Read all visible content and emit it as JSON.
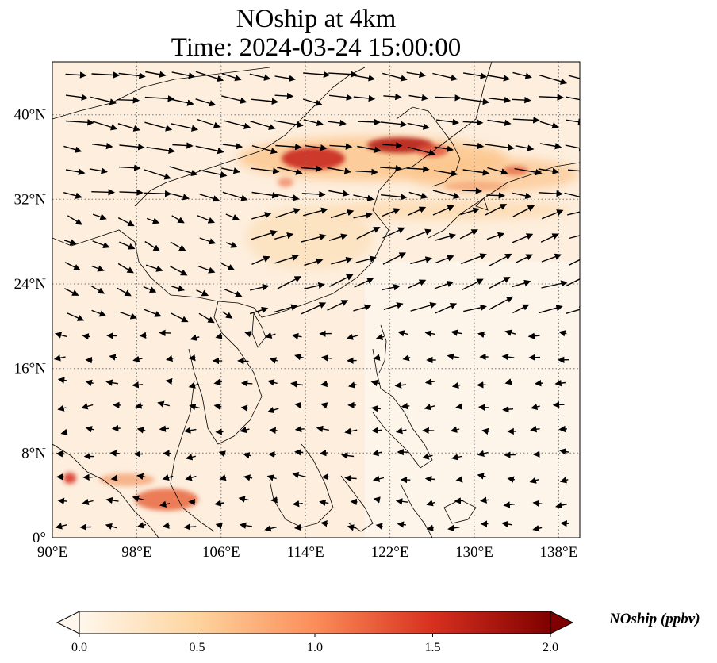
{
  "title": {
    "line1": "NOship at 4km",
    "line2": "Time: 2024-03-24 15:00:00"
  },
  "map": {
    "projection": "PlateCarree",
    "lon_range": [
      90,
      140
    ],
    "lat_range": [
      0,
      45
    ],
    "x_ticks": [
      {
        "value": 90,
        "label": "90°E"
      },
      {
        "value": 98,
        "label": "98°E"
      },
      {
        "value": 106,
        "label": "106°E"
      },
      {
        "value": 114,
        "label": "114°E"
      },
      {
        "value": 122,
        "label": "122°E"
      },
      {
        "value": 130,
        "label": "130°E"
      },
      {
        "value": 138,
        "label": "138°E"
      }
    ],
    "y_ticks": [
      {
        "value": 0,
        "label": "0°"
      },
      {
        "value": 8,
        "label": "8°N"
      },
      {
        "value": 16,
        "label": "16°N"
      },
      {
        "value": 24,
        "label": "24°N"
      },
      {
        "value": 32,
        "label": "32°N"
      },
      {
        "value": 40,
        "label": "40°N"
      }
    ],
    "gridlines": "dotted",
    "layers": [
      "NOship concentration field (filled)",
      "wind vectors (quiver)",
      "coastlines"
    ]
  },
  "colorbar": {
    "label": "NOship (ppbv)",
    "colormap": "OrRd",
    "range": [
      0.0,
      2.0
    ],
    "extend": "both",
    "ticks": [
      {
        "value": 0.0,
        "label": "0.0"
      },
      {
        "value": 0.5,
        "label": "0.5"
      },
      {
        "value": 1.0,
        "label": "1.0"
      },
      {
        "value": 1.5,
        "label": "1.5"
      },
      {
        "value": 2.0,
        "label": "2.0"
      }
    ],
    "colors": [
      "#fff7ec",
      "#fdd49e",
      "#fc8d59",
      "#d7301f",
      "#7f0000"
    ]
  }
}
